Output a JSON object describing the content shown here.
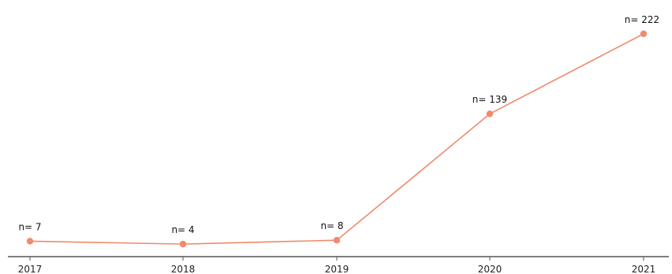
{
  "chart_data": {
    "type": "line",
    "title": "",
    "xlabel": "",
    "ylabel": "",
    "x": [
      "2017",
      "2018",
      "2019",
      "2020",
      "2021"
    ],
    "series": [
      {
        "values": [
          7,
          4,
          8,
          139,
          222
        ],
        "data_labels": [
          "n= 7",
          "n= 4",
          "n= 8",
          "n= 139",
          "n= 222"
        ],
        "color": "#f08a6c"
      }
    ],
    "ylim": [
      0,
      230
    ],
    "grid": false,
    "legend": "none",
    "axis_color": "#555555"
  }
}
